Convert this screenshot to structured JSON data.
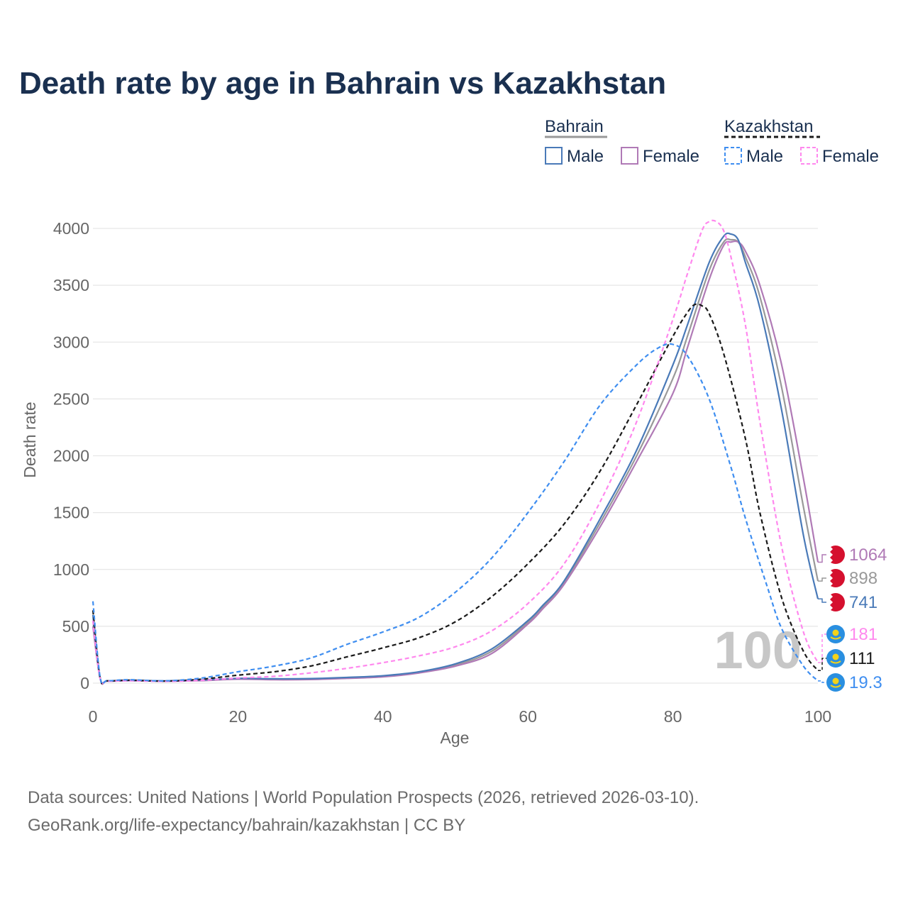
{
  "colors": {
    "title": "#1a3050",
    "axis_text": "#666666",
    "grid": "#e6e6e6",
    "bahrain_male": "#4a7ab8",
    "bahrain_female": "#b07ab6",
    "bahrain_total": "#999999",
    "kaz_male": "#3f8ef0",
    "kaz_female": "#ff88ee",
    "kaz_total": "#1a1a1a",
    "bahrain_flag": "#d5102e",
    "kaz_flag": "#2a8fe0",
    "kaz_flag_sun": "#f2d21a",
    "watermark": "#c7c7c7",
    "footer": "#6b6b6b"
  },
  "title": "Death rate by age in Bahrain vs Kazakhstan",
  "legend": {
    "group_bahrain": "Bahrain",
    "group_kazakhstan": "Kazakhstan",
    "male": "Male",
    "female": "Female"
  },
  "watermark": "100",
  "footer": {
    "line1": "Data sources: United Nations | World Population Prospects (2026, retrieved 2026-03-10).",
    "line2": "GeoRank.org/life-expectancy/bahrain/kazakhstan | CC BY"
  },
  "chart_data": {
    "type": "line",
    "title": "Death rate by age in Bahrain vs Kazakhstan",
    "xlabel": "Age",
    "ylabel": "Death rate",
    "xlim": [
      0,
      100
    ],
    "ylim": [
      0,
      4000
    ],
    "xticks": [
      0,
      20,
      40,
      60,
      80,
      100
    ],
    "yticks": [
      0,
      500,
      1000,
      1500,
      2000,
      2500,
      3000,
      3500,
      4000
    ],
    "series": [
      {
        "key": "bahrain_male",
        "country": "Bahrain",
        "sex": "Male",
        "dash": false,
        "end_label": "741",
        "end_value": 741,
        "points": [
          [
            0,
            600
          ],
          [
            1,
            45
          ],
          [
            2,
            20
          ],
          [
            5,
            25
          ],
          [
            10,
            20
          ],
          [
            15,
            28
          ],
          [
            20,
            42
          ],
          [
            25,
            38
          ],
          [
            30,
            40
          ],
          [
            35,
            50
          ],
          [
            40,
            65
          ],
          [
            45,
            100
          ],
          [
            50,
            170
          ],
          [
            55,
            300
          ],
          [
            60,
            550
          ],
          [
            62,
            680
          ],
          [
            65,
            900
          ],
          [
            70,
            1450
          ],
          [
            75,
            2050
          ],
          [
            80,
            2800
          ],
          [
            82,
            3150
          ],
          [
            85,
            3700
          ],
          [
            87,
            3930
          ],
          [
            88,
            3950
          ],
          [
            89,
            3900
          ],
          [
            90,
            3700
          ],
          [
            92,
            3300
          ],
          [
            95,
            2400
          ],
          [
            98,
            1300
          ],
          [
            100,
            741
          ]
        ]
      },
      {
        "key": "bahrain_female",
        "country": "Bahrain",
        "sex": "Female",
        "dash": false,
        "end_label": "1064",
        "end_value": 1064,
        "points": [
          [
            0,
            500
          ],
          [
            1,
            40
          ],
          [
            2,
            18
          ],
          [
            5,
            22
          ],
          [
            10,
            18
          ],
          [
            15,
            22
          ],
          [
            20,
            35
          ],
          [
            25,
            30
          ],
          [
            30,
            32
          ],
          [
            35,
            42
          ],
          [
            40,
            55
          ],
          [
            45,
            90
          ],
          [
            50,
            150
          ],
          [
            55,
            260
          ],
          [
            60,
            520
          ],
          [
            62,
            650
          ],
          [
            65,
            870
          ],
          [
            70,
            1380
          ],
          [
            75,
            1950
          ],
          [
            80,
            2550
          ],
          [
            82,
            2950
          ],
          [
            85,
            3550
          ],
          [
            87,
            3850
          ],
          [
            88,
            3880
          ],
          [
            89,
            3880
          ],
          [
            90,
            3800
          ],
          [
            92,
            3500
          ],
          [
            95,
            2800
          ],
          [
            98,
            1800
          ],
          [
            100,
            1064
          ]
        ]
      },
      {
        "key": "bahrain_total",
        "country": "Bahrain",
        "sex": "Total",
        "dash": false,
        "end_label": "898",
        "end_value": 898,
        "points": [
          [
            0,
            550
          ],
          [
            1,
            42
          ],
          [
            2,
            19
          ],
          [
            5,
            23
          ],
          [
            10,
            19
          ],
          [
            15,
            25
          ],
          [
            20,
            38
          ],
          [
            25,
            34
          ],
          [
            30,
            36
          ],
          [
            35,
            46
          ],
          [
            40,
            60
          ],
          [
            45,
            95
          ],
          [
            50,
            160
          ],
          [
            55,
            280
          ],
          [
            60,
            535
          ],
          [
            62,
            665
          ],
          [
            65,
            885
          ],
          [
            70,
            1415
          ],
          [
            75,
            2000
          ],
          [
            80,
            2680
          ],
          [
            82,
            3050
          ],
          [
            85,
            3630
          ],
          [
            87,
            3880
          ],
          [
            88,
            3900
          ],
          [
            89,
            3880
          ],
          [
            90,
            3750
          ],
          [
            92,
            3400
          ],
          [
            95,
            2600
          ],
          [
            98,
            1550
          ],
          [
            100,
            898
          ]
        ]
      },
      {
        "key": "kaz_male",
        "country": "Kazakhstan",
        "sex": "Male",
        "dash": true,
        "end_label": "19.3",
        "end_value": 19.3,
        "points": [
          [
            0,
            720
          ],
          [
            1,
            50
          ],
          [
            2,
            22
          ],
          [
            5,
            30
          ],
          [
            10,
            20
          ],
          [
            15,
            45
          ],
          [
            20,
            100
          ],
          [
            25,
            150
          ],
          [
            30,
            220
          ],
          [
            35,
            340
          ],
          [
            40,
            450
          ],
          [
            45,
            580
          ],
          [
            50,
            800
          ],
          [
            55,
            1100
          ],
          [
            60,
            1500
          ],
          [
            65,
            1950
          ],
          [
            70,
            2450
          ],
          [
            75,
            2800
          ],
          [
            78,
            2950
          ],
          [
            80,
            2980
          ],
          [
            82,
            2880
          ],
          [
            85,
            2500
          ],
          [
            88,
            1900
          ],
          [
            90,
            1450
          ],
          [
            93,
            850
          ],
          [
            95,
            480
          ],
          [
            98,
            150
          ],
          [
            100,
            19.3
          ]
        ]
      },
      {
        "key": "kaz_female",
        "country": "Kazakhstan",
        "sex": "Female",
        "dash": true,
        "end_label": "181",
        "end_value": 181,
        "points": [
          [
            0,
            550
          ],
          [
            1,
            40
          ],
          [
            2,
            18
          ],
          [
            5,
            22
          ],
          [
            10,
            15
          ],
          [
            15,
            25
          ],
          [
            20,
            45
          ],
          [
            25,
            60
          ],
          [
            30,
            90
          ],
          [
            35,
            130
          ],
          [
            40,
            180
          ],
          [
            45,
            240
          ],
          [
            50,
            320
          ],
          [
            55,
            460
          ],
          [
            60,
            700
          ],
          [
            65,
            1050
          ],
          [
            70,
            1600
          ],
          [
            75,
            2300
          ],
          [
            80,
            3200
          ],
          [
            82,
            3600
          ],
          [
            84,
            3980
          ],
          [
            85,
            4060
          ],
          [
            86,
            4060
          ],
          [
            87,
            3980
          ],
          [
            88,
            3750
          ],
          [
            90,
            3150
          ],
          [
            92,
            2300
          ],
          [
            95,
            1200
          ],
          [
            98,
            450
          ],
          [
            100,
            181
          ]
        ]
      },
      {
        "key": "kaz_total",
        "country": "Kazakhstan",
        "sex": "Total",
        "dash": true,
        "end_label": "111",
        "end_value": 111,
        "points": [
          [
            0,
            640
          ],
          [
            1,
            45
          ],
          [
            2,
            20
          ],
          [
            5,
            26
          ],
          [
            10,
            18
          ],
          [
            15,
            35
          ],
          [
            20,
            70
          ],
          [
            25,
            100
          ],
          [
            30,
            150
          ],
          [
            35,
            230
          ],
          [
            40,
            310
          ],
          [
            45,
            400
          ],
          [
            50,
            540
          ],
          [
            55,
            760
          ],
          [
            60,
            1050
          ],
          [
            65,
            1400
          ],
          [
            70,
            1870
          ],
          [
            75,
            2450
          ],
          [
            80,
            3050
          ],
          [
            82,
            3260
          ],
          [
            83,
            3330
          ],
          [
            84,
            3320
          ],
          [
            85,
            3250
          ],
          [
            87,
            2900
          ],
          [
            90,
            2150
          ],
          [
            92,
            1500
          ],
          [
            95,
            750
          ],
          [
            98,
            280
          ],
          [
            100,
            111
          ]
        ]
      }
    ]
  }
}
